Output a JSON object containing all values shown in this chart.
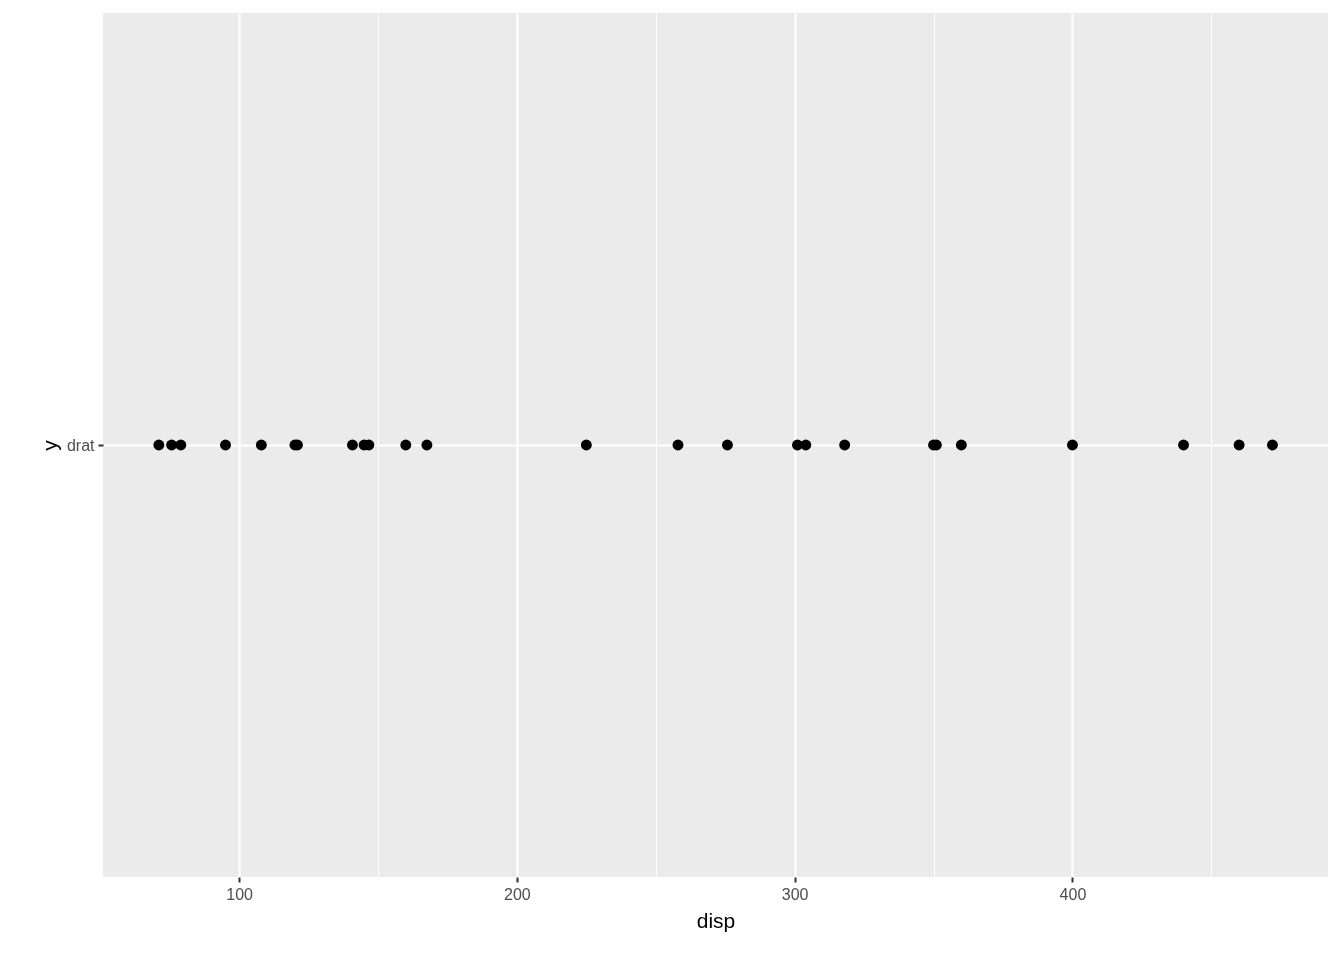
{
  "chart_data": {
    "type": "scatter",
    "orientation": "horizontal",
    "xlabel": "disp",
    "ylabel": "y",
    "categories": [
      "drat"
    ],
    "xlim": [
      51,
      492
    ],
    "xticks": [
      100,
      {
        "value": 150,
        "label": null
      },
      200,
      {
        "value": 250,
        "label": null
      },
      300,
      {
        "value": 350,
        "label": null
      },
      400,
      {
        "value": 450,
        "label": null
      }
    ],
    "grid": true,
    "marker": "circle",
    "series": [
      {
        "color": "#000000",
        "x": [
          "drat",
          "drat",
          "drat",
          "drat",
          "drat",
          "drat",
          "drat",
          "drat",
          "drat",
          "drat",
          "drat",
          "drat",
          "drat",
          "drat",
          "drat",
          "drat",
          "drat",
          "drat",
          "drat",
          "drat",
          "drat",
          "drat",
          "drat",
          "drat",
          "drat"
        ],
        "values": [
          71.1,
          75.7,
          79,
          95.1,
          108,
          120.1,
          121,
          140.8,
          145,
          146.7,
          160,
          167.6,
          225,
          258,
          275.8,
          301,
          304,
          318,
          350,
          351,
          360,
          400,
          440,
          460,
          472
        ]
      }
    ]
  }
}
